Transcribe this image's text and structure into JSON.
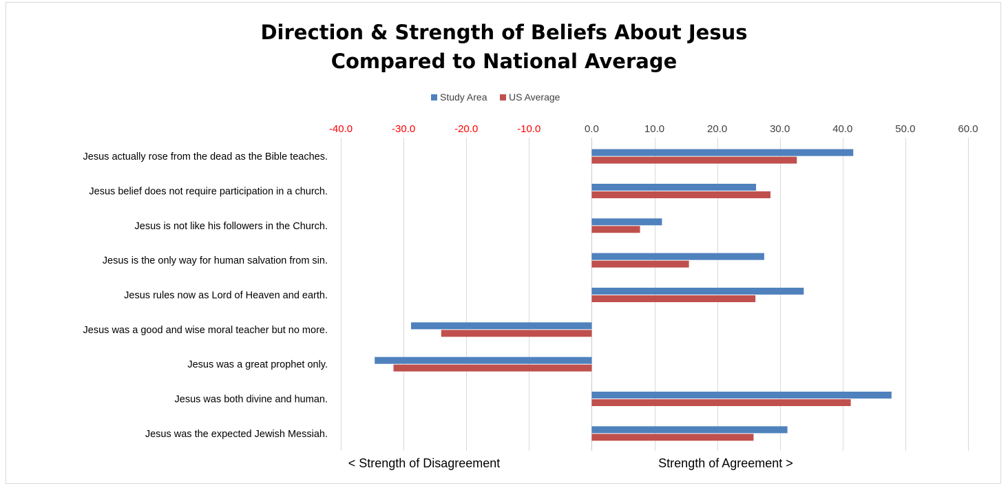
{
  "chart_data": {
    "type": "bar",
    "orientation": "horizontal",
    "title": "Direction & Strength of Beliefs About Jesus",
    "subtitle": "Compared to National Average",
    "categories": [
      "Jesus actually rose from the dead as the Bible teaches.",
      "Jesus belief does not require participation in a church.",
      "Jesus is not like his followers in the Church.",
      "Jesus is the only way for human salvation from sin.",
      "Jesus rules now as Lord of Heaven and earth.",
      "Jesus was a good and wise moral teacher but no more.",
      "Jesus was a great prophet only.",
      "Jesus was both divine and human.",
      "Jesus was the expected Jewish Messiah."
    ],
    "series": [
      {
        "name": "Study Area",
        "color": "#4F81BD",
        "values": [
          41.7,
          26.2,
          11.2,
          27.5,
          33.8,
          -28.8,
          -34.6,
          47.8,
          31.2
        ]
      },
      {
        "name": "US Average",
        "color": "#C0504D",
        "values": [
          32.7,
          28.5,
          7.7,
          15.5,
          26.1,
          -24.0,
          -31.6,
          41.3,
          25.8
        ]
      }
    ],
    "xlim": [
      -40,
      60
    ],
    "xticks": [
      -40,
      -30,
      -20,
      -10,
      0,
      10,
      20,
      30,
      40,
      50,
      60
    ],
    "xtick_labels": [
      "-40.0",
      "-30.0",
      "-20.0",
      "-10.0",
      "0.0",
      "10.0",
      "20.0",
      "30.0",
      "40.0",
      "50.0",
      "60.0"
    ],
    "negative_tick_color": "#FF0000",
    "positive_tick_color": "#404040",
    "xaxis_position": "top",
    "grid": "vertical",
    "legend_position": "top-center",
    "annotations": {
      "left": "< Strength of Disagreement",
      "right": "Strength of Agreement >"
    }
  }
}
